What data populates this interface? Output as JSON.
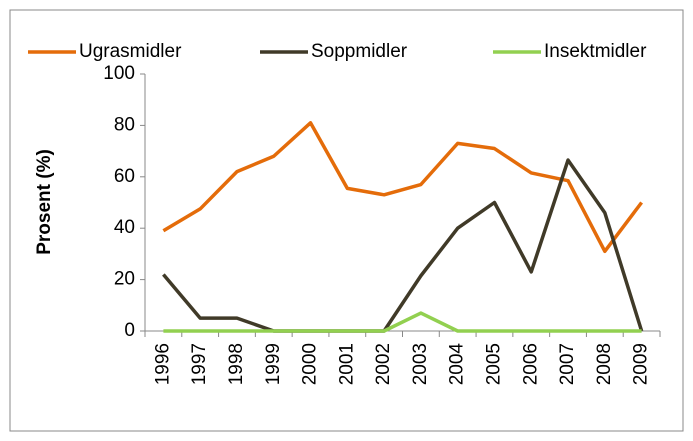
{
  "chart_data": {
    "type": "line",
    "y_label": "Prosent (%)",
    "categories": [
      "1996",
      "1997",
      "1998",
      "1999",
      "2000",
      "2001",
      "2002",
      "2003",
      "2004",
      "2005",
      "2006",
      "2007",
      "2008",
      "2009"
    ],
    "series": [
      {
        "name": "Ugrasmidler",
        "color": "#e46c0a",
        "values": [
          39,
          47.5,
          62,
          68,
          81,
          55.5,
          53,
          57,
          73,
          71,
          61.5,
          58.5,
          31,
          50
        ]
      },
      {
        "name": "Soppmidler",
        "color": "#403a28",
        "values": [
          22,
          5,
          5,
          0,
          0,
          0,
          0,
          21.5,
          40,
          50,
          23,
          66.5,
          46,
          0
        ]
      },
      {
        "name": "Insektmidler",
        "color": "#92d050",
        "values": [
          0,
          0,
          0,
          0,
          0,
          0,
          0,
          7,
          0,
          0,
          0,
          0,
          0,
          0
        ]
      }
    ],
    "ylim": [
      0,
      100
    ],
    "yticks": [
      0,
      20,
      40,
      60,
      80,
      100
    ],
    "grid": false,
    "legend": "top"
  }
}
